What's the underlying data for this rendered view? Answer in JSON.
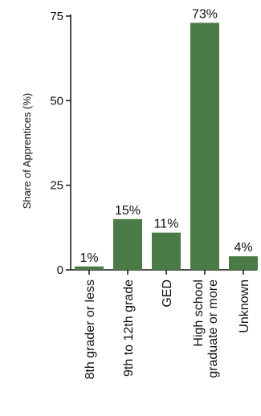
{
  "chart_data": {
    "type": "bar",
    "categories": [
      "8th grader or less",
      "9th to 12th grade",
      "GED",
      "High school graduate or more",
      "Unknown"
    ],
    "category_lines": [
      [
        "8th grader or less"
      ],
      [
        "9th to 12th grade"
      ],
      [
        "GED"
      ],
      [
        "High school",
        "graduate or more"
      ],
      [
        "Unknown"
      ]
    ],
    "values": [
      1,
      15,
      11,
      73,
      4
    ],
    "data_labels": [
      "1%",
      "15%",
      "11%",
      "73%",
      "4%"
    ],
    "title": "",
    "xlabel": "",
    "ylabel": "Share of Apprentices (%)",
    "ylim": [
      0,
      75
    ],
    "yticks": [
      0,
      25,
      50,
      75
    ],
    "ytick_labels": [
      "0",
      "25",
      "50",
      "75"
    ],
    "bar_color": "#4a7a46",
    "grid": false,
    "legend": "none"
  }
}
